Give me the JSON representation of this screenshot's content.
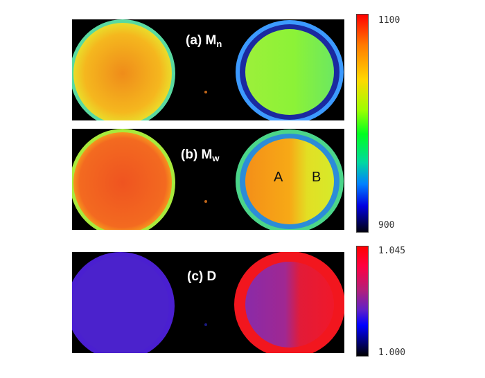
{
  "panels": {
    "a": {
      "label": "(a) M",
      "sub": "n"
    },
    "b": {
      "label": "(b) M",
      "sub": "w",
      "region_left": "A",
      "region_right": "B"
    },
    "c": {
      "label": "(c) D"
    }
  },
  "colorbars": {
    "molecular_weight": {
      "max": "1100",
      "min": "900"
    },
    "dispersity": {
      "max": "1.045",
      "min": "1.000"
    }
  },
  "colors": {
    "background": "#000000",
    "mn_left": "#f2b01e",
    "mn_right": "#86f032",
    "mw_left": "#f2661f",
    "mw_right_a": "#f7a616",
    "mw_right_b": "#d7e628",
    "d_left": "#4a1fd0",
    "d_right": "#e81a2d"
  }
}
